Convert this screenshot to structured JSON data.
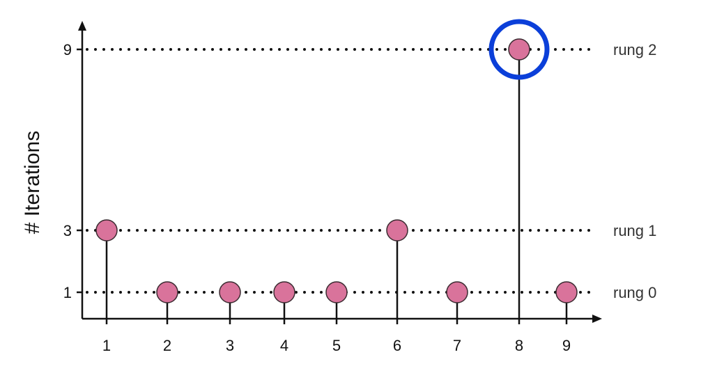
{
  "chart_data": {
    "type": "scatter",
    "title": "",
    "xlabel": "",
    "ylabel": "# Iterations",
    "x_ticks": [
      "1",
      "2",
      "3",
      "4",
      "5",
      "6",
      "7",
      "8",
      "9"
    ],
    "y_ticks": [
      "1",
      "3",
      "9"
    ],
    "points": [
      {
        "x": 1,
        "y": 3
      },
      {
        "x": 2,
        "y": 1
      },
      {
        "x": 3,
        "y": 1
      },
      {
        "x": 4,
        "y": 1
      },
      {
        "x": 5,
        "y": 1
      },
      {
        "x": 6,
        "y": 3
      },
      {
        "x": 7,
        "y": 1
      },
      {
        "x": 8,
        "y": 9
      },
      {
        "x": 9,
        "y": 1
      }
    ],
    "rungs": [
      {
        "label": "rung 0",
        "y": 1
      },
      {
        "label": "rung 1",
        "y": 3
      },
      {
        "label": "rung 2",
        "y": 9
      }
    ],
    "highlighted_point": {
      "x": 8,
      "y": 9
    },
    "marker_color": "#d9739b",
    "highlight_color": "#0b3fd9",
    "grid": false,
    "legend": "none"
  }
}
